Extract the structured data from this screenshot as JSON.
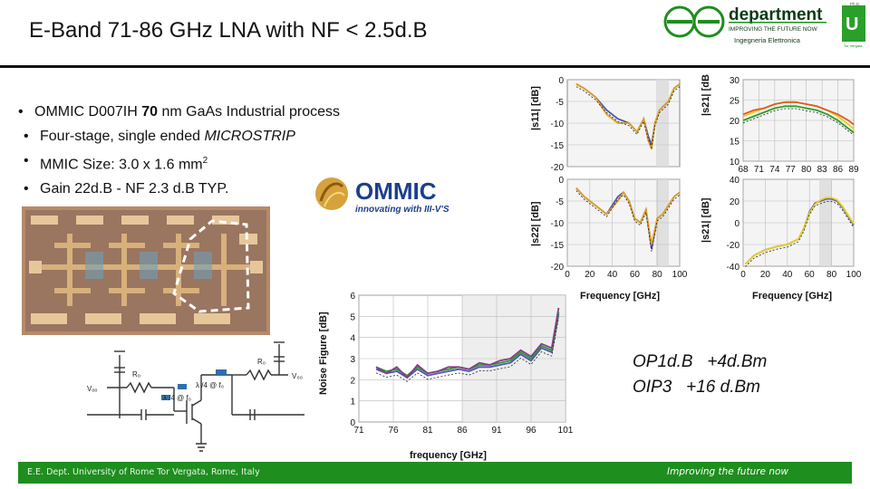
{
  "title": "E-Band 71-86 GHz LNA with NF < 2.5d.B",
  "logo": {
    "word": "department",
    "tagline": "IMPROVING THE FUTURE NOW",
    "subtitle": "Ingegneria Elettronica",
    "badge": "Tor Vergata",
    "small": "Ph.D."
  },
  "bullets": [
    {
      "prefix": "OMMIC D007IH ",
      "bold": "70",
      "suffix": " nm GaAs Industrial process"
    },
    {
      "prefix": "Four-stage, single ended ",
      "italic": "MICROSTRIP"
    },
    {
      "prefix": "MMIC Size: 3.0 x 1.6 mm",
      "sup": "2"
    },
    {
      "prefix": "Gain 22d.B - NF 2.3 d.B TYP."
    }
  ],
  "ommic": {
    "name": "OMMIC",
    "tagline": "innovating with III-V'S"
  },
  "schematic": {
    "vgg": "Vₒₒ",
    "vdd": "V₀₀",
    "rg": "Rₒ",
    "rd": "R₀",
    "lam1": "λ /4 @ f₀",
    "lam2": "λ /4 @ f₀"
  },
  "chart_data": [
    {
      "type": "line",
      "ylabel": "|s11| [dB]",
      "xlim": [
        0,
        100
      ],
      "ylim": [
        -20,
        0
      ],
      "yticks": [
        "0",
        "-5",
        "-10",
        "-15",
        "-20"
      ],
      "series": [
        {
          "color": "#4d55b5",
          "x": [
            8,
            15,
            25,
            35,
            45,
            55,
            62,
            68,
            72,
            75,
            78,
            82,
            86,
            90,
            95,
            100
          ],
          "values": [
            -1,
            -2,
            -4,
            -7,
            -9,
            -10,
            -12,
            -9,
            -13,
            -15,
            -10,
            -7,
            -6,
            -5,
            -2,
            -1
          ]
        },
        {
          "color": "#e0a020",
          "x": [
            8,
            15,
            25,
            35,
            45,
            55,
            62,
            68,
            72,
            75,
            78,
            82,
            86,
            90,
            95,
            100
          ],
          "values": [
            -1,
            -2,
            -4,
            -8,
            -10,
            -10,
            -12,
            -9,
            -14,
            -16,
            -10,
            -7,
            -6,
            -5,
            -2,
            -1
          ]
        }
      ]
    },
    {
      "type": "line",
      "ylabel": "|s21| [dB]",
      "xticks": [
        "68",
        "71",
        "74",
        "77",
        "80",
        "83",
        "86",
        "89"
      ],
      "ylim": [
        10,
        30
      ],
      "yticks": [
        "30",
        "25",
        "20",
        "15",
        "10"
      ],
      "series": [
        {
          "color": "#2a9d2a",
          "x": [
            68,
            70,
            72,
            74,
            76,
            78,
            80,
            82,
            84,
            86,
            88,
            89
          ],
          "values": [
            20,
            21,
            22,
            23,
            23.5,
            23.5,
            23,
            22.5,
            21.5,
            20,
            18,
            17
          ]
        },
        {
          "color": "#e8d01a",
          "x": [
            68,
            70,
            72,
            74,
            76,
            78,
            80,
            82,
            84,
            86,
            88,
            89
          ],
          "values": [
            21,
            22,
            23,
            24,
            24.5,
            24.5,
            24,
            23.5,
            22.5,
            21,
            19,
            18
          ]
        },
        {
          "color": "#e05a20",
          "x": [
            68,
            70,
            72,
            74,
            76,
            78,
            80,
            82,
            84,
            86,
            88,
            89
          ],
          "values": [
            21.5,
            22.5,
            23,
            24,
            24.5,
            24.5,
            24,
            23.5,
            22.5,
            21.5,
            20,
            19
          ]
        }
      ]
    },
    {
      "type": "line",
      "ylabel": "|s22| [dB]",
      "xlabel": "Frequency [GHz]",
      "xticks": [
        "0",
        "20",
        "40",
        "60",
        "80",
        "100"
      ],
      "ylim": [
        -20,
        0
      ],
      "yticks": [
        "0",
        "-5",
        "-10",
        "-15",
        "-20"
      ],
      "series": [
        {
          "color": "#4d55b5",
          "x": [
            8,
            15,
            25,
            35,
            45,
            50,
            55,
            60,
            65,
            70,
            75,
            80,
            85,
            90,
            95,
            100
          ],
          "values": [
            -2,
            -4,
            -6,
            -8,
            -4,
            -3,
            -5,
            -9,
            -10,
            -7,
            -16,
            -9,
            -8,
            -6,
            -4,
            -3
          ]
        },
        {
          "color": "#e0a020",
          "x": [
            8,
            15,
            25,
            35,
            45,
            50,
            55,
            60,
            65,
            70,
            75,
            80,
            85,
            90,
            95,
            100
          ],
          "values": [
            -2,
            -4,
            -6,
            -8,
            -5,
            -3,
            -5,
            -9,
            -10,
            -7,
            -15,
            -9,
            -8,
            -6,
            -4,
            -3
          ]
        }
      ]
    },
    {
      "type": "line",
      "ylabel": "|s21| [dB]",
      "xlabel": "Frequency [GHz]",
      "xticks": [
        "0",
        "20",
        "40",
        "60",
        "80",
        "100"
      ],
      "ylim": [
        -40,
        40
      ],
      "yticks": [
        "40",
        "20",
        "0",
        "-20",
        "-40"
      ],
      "series": [
        {
          "color": "#4d55b5",
          "x": [
            2,
            10,
            20,
            30,
            40,
            50,
            55,
            60,
            65,
            70,
            75,
            80,
            85,
            90,
            95,
            100
          ],
          "values": [
            -38,
            -30,
            -25,
            -22,
            -20,
            -15,
            -5,
            10,
            18,
            20,
            22,
            22,
            20,
            14,
            6,
            -2
          ]
        },
        {
          "color": "#e8d01a",
          "x": [
            2,
            10,
            20,
            30,
            40,
            50,
            55,
            60,
            65,
            70,
            75,
            80,
            85,
            90,
            95,
            100
          ],
          "values": [
            -38,
            -30,
            -25,
            -22,
            -20,
            -15,
            -5,
            9,
            17,
            21,
            23,
            23,
            21,
            15,
            7,
            -1
          ]
        }
      ]
    },
    {
      "type": "line",
      "ylabel": "Noise Figure [dB]",
      "xlabel": "frequency [GHz]",
      "xticks": [
        "71",
        "76",
        "81",
        "86",
        "91",
        "96",
        "101"
      ],
      "xlim": [
        71,
        101
      ],
      "ylim": [
        0,
        6
      ],
      "yticks": [
        "6",
        "5",
        "4",
        "3",
        "2",
        "1",
        "0"
      ],
      "series": [
        {
          "color": "#4d55b5",
          "x": [
            73.5,
            75,
            76.5,
            78,
            79.5,
            81,
            82.5,
            84,
            85.5,
            87,
            88.5,
            90,
            91.5,
            93,
            94.5,
            96,
            97.5,
            99,
            100
          ],
          "values": [
            2.5,
            2.3,
            2.4,
            2.1,
            2.5,
            2.2,
            2.3,
            2.4,
            2.5,
            2.4,
            2.6,
            2.6,
            2.7,
            2.8,
            3.2,
            2.9,
            3.5,
            3.3,
            5.1
          ]
        },
        {
          "color": "#2a9d2a",
          "x": [
            73.5,
            75,
            76.5,
            78,
            79.5,
            81,
            82.5,
            84,
            85.5,
            87,
            88.5,
            90,
            91.5,
            93,
            94.5,
            96,
            97.5,
            99,
            100
          ],
          "values": [
            2.6,
            2.4,
            2.5,
            2.2,
            2.6,
            2.3,
            2.4,
            2.5,
            2.6,
            2.5,
            2.7,
            2.7,
            2.8,
            2.9,
            3.3,
            3.0,
            3.6,
            3.4,
            5.2
          ]
        },
        {
          "color": "#8a3a8a",
          "x": [
            73.5,
            75,
            76.5,
            78,
            79.5,
            81,
            82.5,
            84,
            85.5,
            87,
            88.5,
            90,
            91.5,
            93,
            94.5,
            96,
            97.5,
            99,
            100
          ],
          "values": [
            2.6,
            2.3,
            2.6,
            2.1,
            2.7,
            2.3,
            2.4,
            2.6,
            2.6,
            2.5,
            2.8,
            2.7,
            2.9,
            3.0,
            3.4,
            3.1,
            3.7,
            3.5,
            5.4
          ]
        }
      ]
    }
  ],
  "performance": {
    "op1db": "OP1d.B   +4d.Bm",
    "oip3": "OIP3   +16 d.Bm"
  },
  "footer": {
    "left": "E.E. Dept. University of Rome Tor Vergata, Rome, Italy",
    "right": "Improving the future now"
  }
}
